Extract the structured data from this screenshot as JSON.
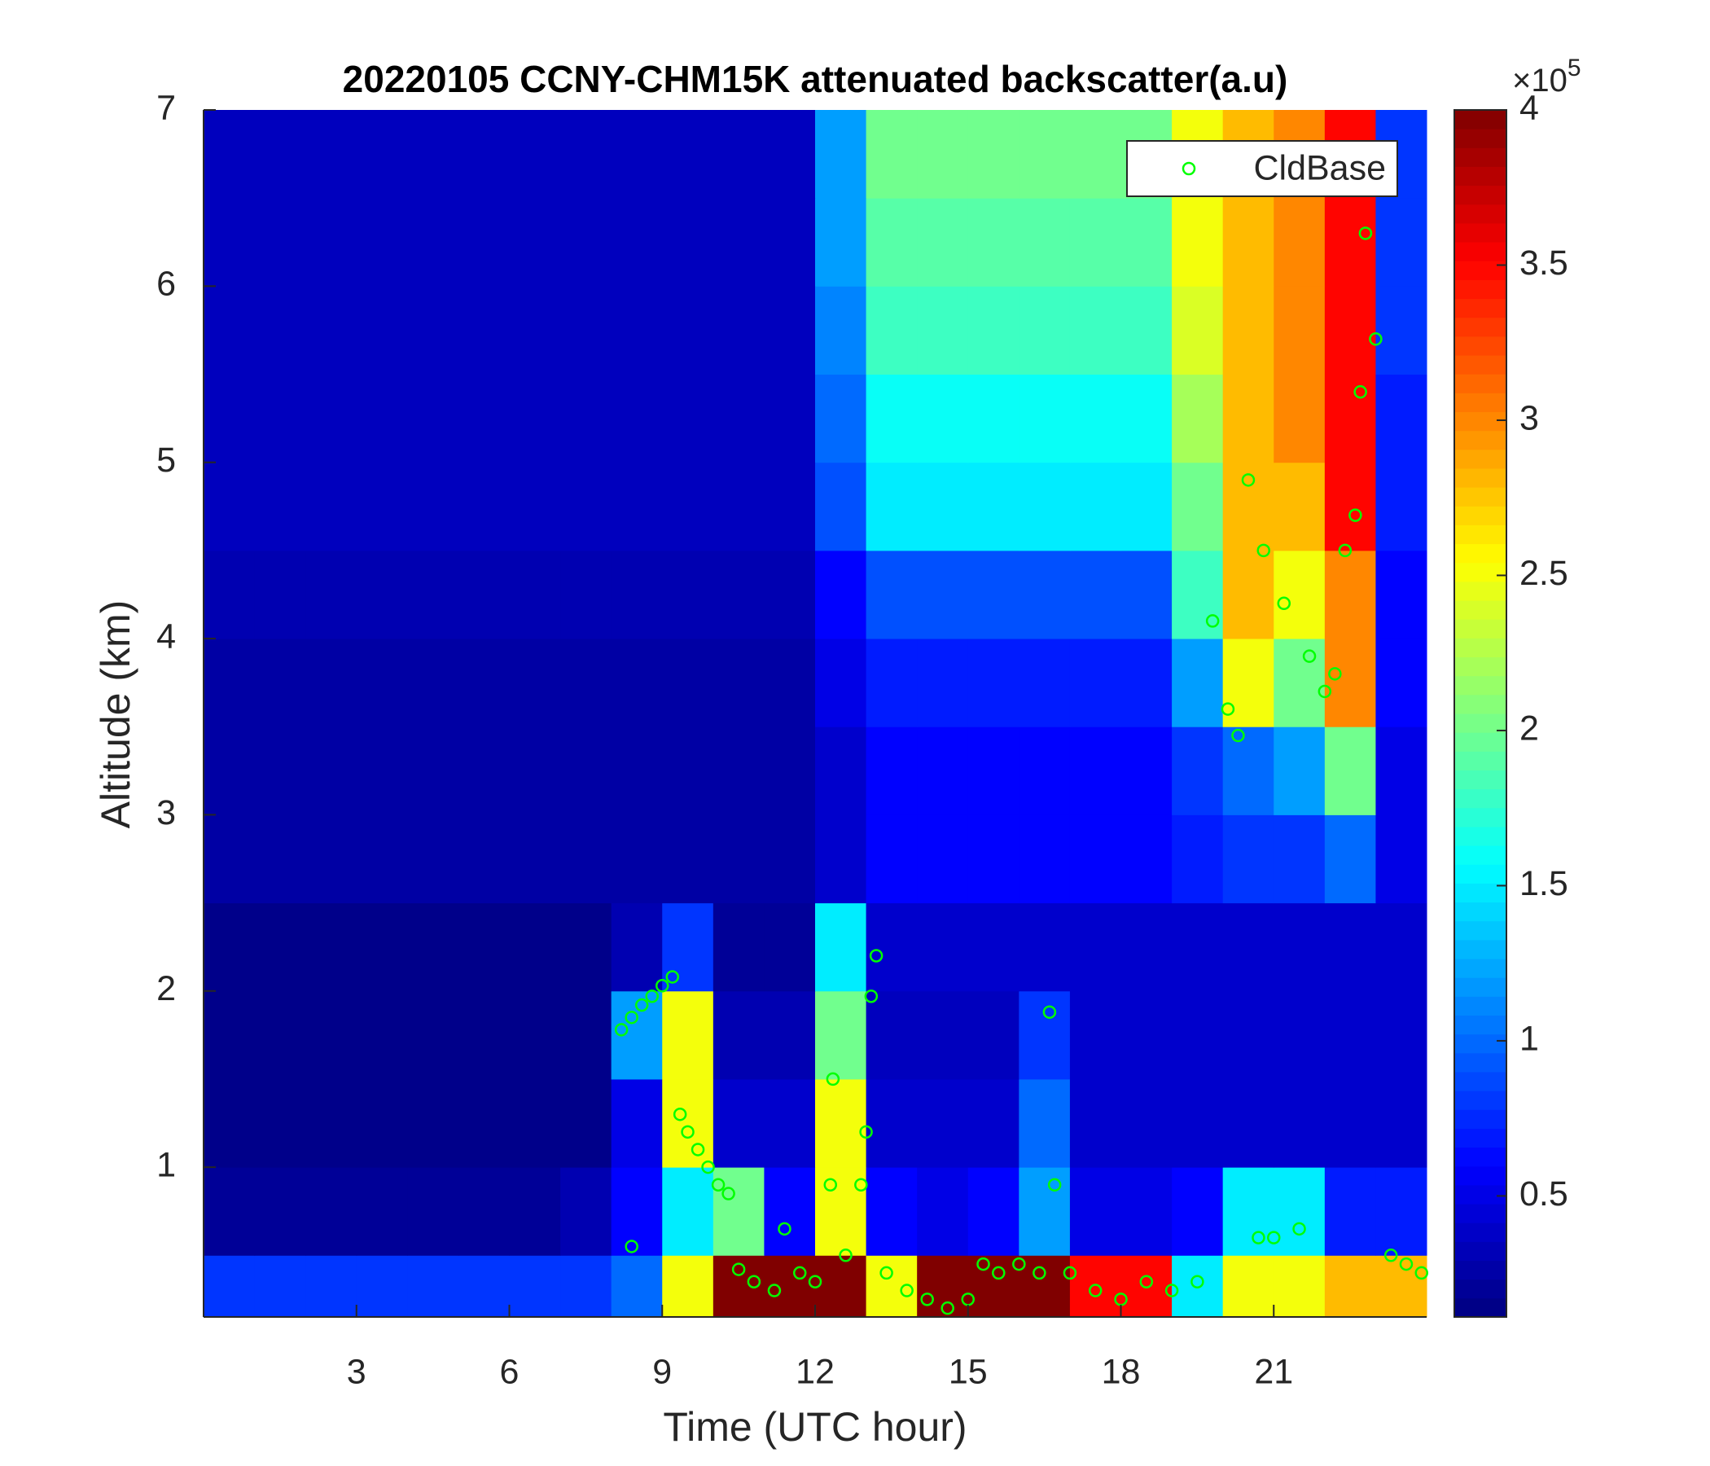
{
  "chart_data": {
    "type": "heatmap",
    "title": "20220105 CCNY-CHM15K attenuated backscatter(a.u)",
    "xlabel": "Time (UTC hour)",
    "ylabel": "Altitude (km)",
    "xlim": [
      0,
      24
    ],
    "ylim": [
      0.15,
      7
    ],
    "xticks": [
      3,
      6,
      9,
      12,
      15,
      18,
      21
    ],
    "yticks": [
      1,
      2,
      3,
      4,
      5,
      6,
      7
    ],
    "x_edges": [
      0,
      1,
      2,
      3,
      4,
      5,
      6,
      7,
      8,
      9,
      10,
      11,
      12,
      13,
      14,
      15,
      16,
      17,
      18,
      19,
      20,
      21,
      22,
      23,
      24
    ],
    "y_edges": [
      0.15,
      0.5,
      1,
      1.5,
      2,
      2.5,
      3,
      3.5,
      4,
      4.5,
      5,
      5.5,
      6,
      6.5,
      7
    ],
    "z": [
      [
        0.8,
        0.8,
        0.8,
        0.8,
        0.8,
        0.8,
        0.8,
        0.8,
        1.0,
        2.5,
        4,
        4,
        4,
        2.5,
        4,
        4,
        4,
        3.5,
        3.5,
        1.5,
        2.5,
        2.5,
        2.8,
        2.8
      ],
      [
        0.2,
        0.2,
        0.2,
        0.2,
        0.2,
        0.2,
        0.2,
        0.3,
        0.6,
        1.5,
        2,
        0.6,
        2.5,
        0.6,
        0.5,
        0.6,
        1.2,
        0.5,
        0.5,
        0.6,
        1.5,
        1.5,
        0.7,
        0.7
      ],
      [
        0.15,
        0.15,
        0.15,
        0.15,
        0.15,
        0.15,
        0.15,
        0.15,
        0.5,
        2.5,
        0.4,
        0.4,
        2.5,
        0.4,
        0.4,
        0.4,
        1,
        0.4,
        0.4,
        0.4,
        0.4,
        0.4,
        0.4,
        0.4
      ],
      [
        0.15,
        0.15,
        0.15,
        0.15,
        0.15,
        0.15,
        0.15,
        0.15,
        1.2,
        2.5,
        0.3,
        0.3,
        2,
        0.35,
        0.35,
        0.35,
        0.8,
        0.4,
        0.4,
        0.4,
        0.4,
        0.4,
        0.4,
        0.4
      ],
      [
        0.15,
        0.15,
        0.15,
        0.15,
        0.15,
        0.15,
        0.15,
        0.15,
        0.3,
        0.8,
        0.2,
        0.2,
        1.5,
        0.4,
        0.4,
        0.4,
        0.4,
        0.4,
        0.4,
        0.4,
        0.4,
        0.4,
        0.4,
        0.4
      ],
      [
        0.25,
        0.25,
        0.25,
        0.25,
        0.25,
        0.25,
        0.25,
        0.25,
        0.25,
        0.25,
        0.25,
        0.25,
        0.4,
        0.6,
        0.6,
        0.6,
        0.6,
        0.6,
        0.6,
        0.7,
        0.8,
        0.8,
        1.0,
        0.5
      ],
      [
        0.25,
        0.25,
        0.25,
        0.25,
        0.25,
        0.25,
        0.25,
        0.25,
        0.25,
        0.25,
        0.25,
        0.25,
        0.4,
        0.6,
        0.6,
        0.6,
        0.6,
        0.6,
        0.6,
        0.8,
        1.0,
        1.2,
        2.0,
        0.5
      ],
      [
        0.25,
        0.25,
        0.25,
        0.25,
        0.25,
        0.25,
        0.25,
        0.25,
        0.25,
        0.25,
        0.25,
        0.25,
        0.5,
        0.7,
        0.7,
        0.7,
        0.7,
        0.7,
        0.7,
        1.2,
        2.5,
        2.0,
        3.0,
        0.6
      ],
      [
        0.3,
        0.3,
        0.3,
        0.3,
        0.3,
        0.3,
        0.3,
        0.3,
        0.3,
        0.3,
        0.3,
        0.3,
        0.6,
        0.9,
        0.9,
        0.9,
        0.9,
        0.9,
        0.9,
        1.8,
        2.8,
        2.5,
        3.0,
        0.6
      ],
      [
        0.35,
        0.35,
        0.35,
        0.35,
        0.35,
        0.35,
        0.35,
        0.35,
        0.35,
        0.35,
        0.35,
        0.35,
        0.9,
        1.5,
        1.5,
        1.5,
        1.5,
        1.5,
        1.5,
        2.0,
        2.8,
        2.8,
        3.5,
        0.7
      ],
      [
        0.35,
        0.35,
        0.35,
        0.35,
        0.35,
        0.35,
        0.35,
        0.35,
        0.35,
        0.35,
        0.35,
        0.35,
        1.0,
        1.6,
        1.6,
        1.6,
        1.6,
        1.6,
        1.6,
        2.2,
        2.8,
        3.0,
        3.5,
        0.7
      ],
      [
        0.35,
        0.35,
        0.35,
        0.35,
        0.35,
        0.35,
        0.35,
        0.35,
        0.35,
        0.35,
        0.35,
        0.35,
        1.1,
        1.8,
        1.8,
        1.8,
        1.8,
        1.8,
        1.8,
        2.4,
        2.8,
        3.0,
        3.5,
        0.8
      ],
      [
        0.35,
        0.35,
        0.35,
        0.35,
        0.35,
        0.35,
        0.35,
        0.35,
        0.35,
        0.35,
        0.35,
        0.35,
        1.2,
        1.9,
        1.9,
        1.9,
        1.9,
        1.9,
        1.9,
        2.5,
        2.8,
        3.0,
        3.5,
        0.8
      ],
      [
        0.35,
        0.35,
        0.35,
        0.35,
        0.35,
        0.35,
        0.35,
        0.35,
        0.35,
        0.35,
        0.35,
        0.35,
        1.2,
        2.0,
        2.0,
        2.0,
        2.0,
        2.0,
        2.0,
        2.5,
        2.8,
        3.0,
        3.5,
        0.8
      ]
    ],
    "colormap": "jet",
    "clim": [
      0.11,
      4
    ],
    "cticks": [
      0.5,
      1,
      1.5,
      2,
      2.5,
      3,
      3.5,
      4
    ],
    "colorbar_multiplier": {
      "base": "×10",
      "exponent": "5"
    },
    "legend": "northeast",
    "series": [
      {
        "name": "CldBase",
        "type": "scatter",
        "marker": "circle",
        "color": "#00ff00",
        "x": [
          8.2,
          8.4,
          8.6,
          8.8,
          9.0,
          9.2,
          8.4,
          9.35,
          9.5,
          9.7,
          9.9,
          10.1,
          10.3,
          10.5,
          10.8,
          11.2,
          11.4,
          11.7,
          12.0,
          12.3,
          12.35,
          12.6,
          12.9,
          13.0,
          13.1,
          13.2,
          13.4,
          13.8,
          14.2,
          14.6,
          15.0,
          15.3,
          15.6,
          16.0,
          16.4,
          16.6,
          16.7,
          17.0,
          17.5,
          18.0,
          18.5,
          19.0,
          19.5,
          19.8,
          20.1,
          20.3,
          20.5,
          20.7,
          20.8,
          21.0,
          21.2,
          21.5,
          21.7,
          22.0,
          22.2,
          22.4,
          22.6,
          22.7,
          22.8,
          23.0,
          23.3,
          23.6,
          23.9
        ],
        "values": [
          1.78,
          1.85,
          1.92,
          1.97,
          2.03,
          2.08,
          0.55,
          1.3,
          1.2,
          1.1,
          1.0,
          0.9,
          0.85,
          0.42,
          0.35,
          0.3,
          0.65,
          0.4,
          0.35,
          0.9,
          1.5,
          0.5,
          0.9,
          1.2,
          1.97,
          2.2,
          0.4,
          0.3,
          0.25,
          0.2,
          0.25,
          0.45,
          0.4,
          0.45,
          0.4,
          1.88,
          0.9,
          0.4,
          0.3,
          0.25,
          0.35,
          0.3,
          0.35,
          4.1,
          3.6,
          3.45,
          4.9,
          0.6,
          4.5,
          0.6,
          4.2,
          0.65,
          3.9,
          3.7,
          3.8,
          4.5,
          4.7,
          5.4,
          6.3,
          5.7,
          0.5,
          0.45,
          0.4
        ]
      }
    ]
  }
}
